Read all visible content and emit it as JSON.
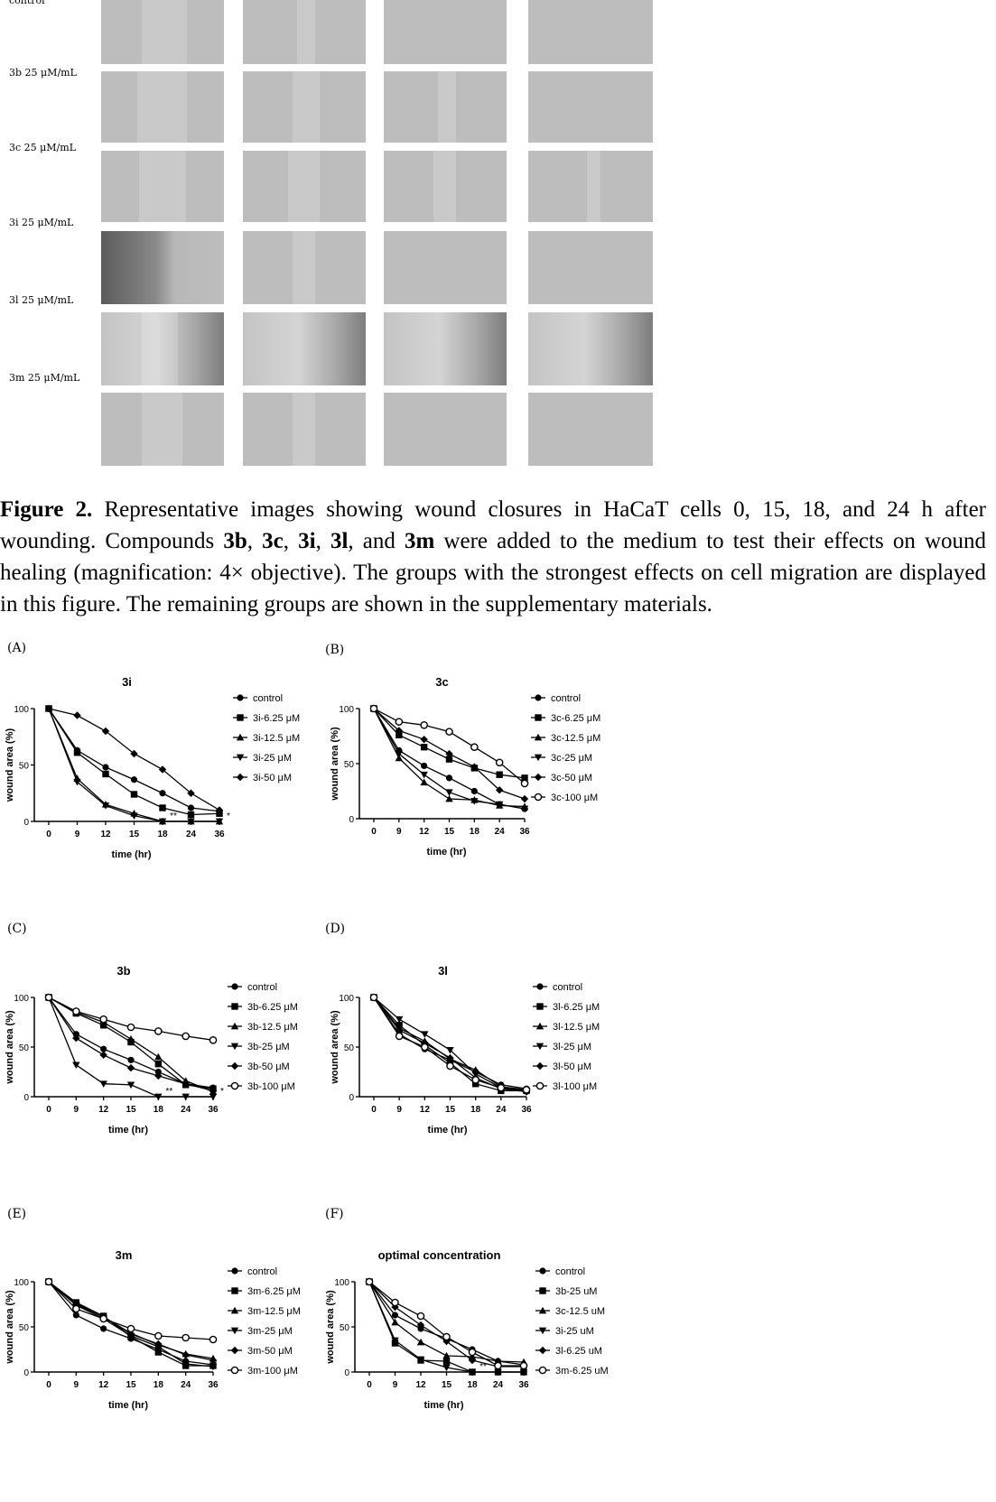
{
  "images": {
    "row_labels": [
      "control",
      "3b 25 μM/mL",
      "3c 25 μM/mL",
      "3i 25 μM/mL",
      "3l 25 μM/mL",
      "3m 25 μM/mL"
    ]
  },
  "caption": {
    "label": "Figure 2.",
    "text_1": " Representative images showing wound closures in HaCaT cells 0, 15, 18, and 24 h after wounding. Compounds ",
    "c1": "3b",
    "sep1": ", ",
    "c2": "3c",
    "sep2": ", ",
    "c3": "3i",
    "sep3": ", ",
    "c4": "3l",
    "sep4": ", and ",
    "c5": "3m",
    "text_2": " were added to the medium to test their effects on wound healing (magnification: 4× objective). The groups with the strongest effects on cell migration are displayed in this figure. The remaining groups are shown in the supplementary materials."
  },
  "colors": {
    "line": "#000000",
    "axis": "#000000"
  },
  "chart_data": [
    {
      "panel": "(A)",
      "type": "line",
      "title": "3i",
      "xlabel": "time (hr)",
      "ylabel": "wound area (%)",
      "categories": [
        "0",
        "9",
        "12",
        "15",
        "18",
        "24",
        "36"
      ],
      "ylim": [
        0,
        100
      ],
      "yticks": [
        "0",
        "50",
        "100"
      ],
      "legend_position": "right",
      "annotations": [
        {
          "text": "**",
          "category": "18"
        },
        {
          "text": "*",
          "category": "36"
        }
      ],
      "series": [
        {
          "name": "control",
          "marker": "circle",
          "values": [
            100,
            63,
            48,
            37,
            25,
            12,
            9
          ]
        },
        {
          "name": "3i-6.25 μM",
          "marker": "square",
          "values": [
            100,
            61,
            42,
            24,
            12,
            6,
            7
          ]
        },
        {
          "name": "3i-12.5 μM",
          "marker": "triangle",
          "values": [
            100,
            38,
            15,
            7,
            0,
            0,
            0
          ]
        },
        {
          "name": "3i-25 μM",
          "marker": "triangle-down",
          "values": [
            100,
            35,
            14,
            5,
            0,
            0,
            0
          ]
        },
        {
          "name": "3i-50 μM",
          "marker": "diamond",
          "values": [
            100,
            94,
            80,
            60,
            46,
            25,
            10
          ]
        }
      ]
    },
    {
      "panel": "(B)",
      "type": "line",
      "title": "3c",
      "xlabel": "time (hr)",
      "ylabel": "wound area (%)",
      "categories": [
        "0",
        "9",
        "12",
        "15",
        "18",
        "24",
        "36"
      ],
      "ylim": [
        0,
        100
      ],
      "yticks": [
        "0",
        "50",
        "100"
      ],
      "legend_position": "right",
      "annotations": [],
      "series": [
        {
          "name": "control",
          "marker": "circle",
          "values": [
            100,
            62,
            48,
            37,
            25,
            13,
            9
          ]
        },
        {
          "name": "3c-6.25 μM",
          "marker": "square",
          "values": [
            100,
            76,
            65,
            54,
            46,
            40,
            37
          ]
        },
        {
          "name": "3c-12.5 μM",
          "marker": "triangle",
          "values": [
            100,
            55,
            33,
            18,
            17,
            12,
            11
          ]
        },
        {
          "name": "3c-25 μM",
          "marker": "triangle-down",
          "values": [
            100,
            59,
            40,
            24,
            16,
            13,
            9
          ]
        },
        {
          "name": "3c-50 μM",
          "marker": "diamond",
          "values": [
            100,
            80,
            72,
            59,
            47,
            26,
            18
          ]
        },
        {
          "name": "3c-100 μM",
          "marker": "circle-open",
          "values": [
            100,
            88,
            85,
            79,
            65,
            51,
            32
          ]
        }
      ]
    },
    {
      "panel": "(C)",
      "type": "line",
      "title": "3b",
      "xlabel": "time (hr)",
      "ylabel": "wound area (%)",
      "categories": [
        "0",
        "9",
        "12",
        "15",
        "18",
        "24",
        "36"
      ],
      "ylim": [
        0,
        100
      ],
      "yticks": [
        "0",
        "50",
        "100"
      ],
      "legend_position": "right",
      "annotations": [
        {
          "text": "**",
          "category": "18"
        },
        {
          "text": "*",
          "category": "36"
        }
      ],
      "series": [
        {
          "name": "control",
          "marker": "circle",
          "values": [
            100,
            63,
            48,
            37,
            25,
            13,
            9
          ]
        },
        {
          "name": "3b-6.25 μM",
          "marker": "square",
          "values": [
            100,
            84,
            72,
            55,
            33,
            12,
            8
          ]
        },
        {
          "name": "3b-12.5 μM",
          "marker": "triangle",
          "values": [
            100,
            85,
            75,
            58,
            40,
            16,
            5
          ]
        },
        {
          "name": "3b-25 μM",
          "marker": "triangle-down",
          "values": [
            100,
            32,
            13,
            12,
            0,
            0,
            0
          ]
        },
        {
          "name": "3b-50 μM",
          "marker": "diamond",
          "values": [
            100,
            59,
            42,
            29,
            21,
            13,
            6
          ]
        },
        {
          "name": "3b-100 μM",
          "marker": "circle-open",
          "values": [
            100,
            86,
            78,
            70,
            66,
            61,
            57
          ]
        }
      ]
    },
    {
      "panel": "(D)",
      "type": "line",
      "title": "3l",
      "xlabel": "time (hr)",
      "ylabel": "wound area (%)",
      "categories": [
        "0",
        "9",
        "12",
        "15",
        "18",
        "24",
        "36"
      ],
      "ylim": [
        0,
        100
      ],
      "yticks": [
        "0",
        "50",
        "100"
      ],
      "legend_position": "right",
      "annotations": [],
      "series": [
        {
          "name": "control",
          "marker": "circle",
          "values": [
            100,
            63,
            48,
            37,
            25,
            12,
            8
          ]
        },
        {
          "name": "3l-6.25 μM",
          "marker": "square",
          "values": [
            100,
            72,
            52,
            34,
            13,
            6,
            6
          ]
        },
        {
          "name": "3l-12.5 μM",
          "marker": "triangle",
          "values": [
            100,
            69,
            56,
            38,
            27,
            10,
            7
          ]
        },
        {
          "name": "3l-25 μM",
          "marker": "triangle-down",
          "values": [
            100,
            78,
            63,
            47,
            23,
            9,
            6
          ]
        },
        {
          "name": "3l-50 μM",
          "marker": "diamond",
          "values": [
            100,
            67,
            54,
            39,
            19,
            8,
            5
          ]
        },
        {
          "name": "3l-100 μM",
          "marker": "circle-open",
          "values": [
            100,
            61,
            50,
            31,
            17,
            9,
            7
          ]
        }
      ]
    },
    {
      "panel": "(E)",
      "type": "line",
      "title": "3m",
      "xlabel": "time (hr)",
      "ylabel": "wound area (%)",
      "categories": [
        "0",
        "9",
        "12",
        "15",
        "18",
        "24",
        "36"
      ],
      "ylim": [
        0,
        100
      ],
      "yticks": [
        "0",
        "50",
        "100"
      ],
      "legend_position": "right",
      "annotations": [],
      "series": [
        {
          "name": "control",
          "marker": "circle",
          "values": [
            100,
            63,
            48,
            37,
            25,
            12,
            8
          ]
        },
        {
          "name": "3m-6.25 μM",
          "marker": "square",
          "values": [
            100,
            77,
            62,
            39,
            22,
            7,
            7
          ]
        },
        {
          "name": "3m-12.5 μM",
          "marker": "triangle",
          "values": [
            100,
            75,
            61,
            43,
            30,
            20,
            15
          ]
        },
        {
          "name": "3m-25 μM",
          "marker": "triangle-down",
          "values": [
            100,
            74,
            59,
            40,
            28,
            9,
            6
          ]
        },
        {
          "name": "3m-50 μM",
          "marker": "diamond",
          "values": [
            100,
            76,
            61,
            42,
            31,
            19,
            13
          ]
        },
        {
          "name": "3m-100 μM",
          "marker": "circle-open",
          "values": [
            100,
            70,
            59,
            48,
            40,
            38,
            36
          ]
        }
      ]
    },
    {
      "panel": "(F)",
      "type": "line",
      "title": "optimal concentration",
      "xlabel": "time (hr)",
      "ylabel": "wound area (%)",
      "categories": [
        "0",
        "9",
        "12",
        "15",
        "18",
        "24",
        "36"
      ],
      "ylim": [
        0,
        100
      ],
      "yticks": [
        "0",
        "50",
        "100"
      ],
      "legend_position": "right",
      "annotations": [
        {
          "text": "**",
          "category": "18"
        }
      ],
      "series": [
        {
          "name": "control",
          "marker": "circle",
          "values": [
            100,
            63,
            48,
            37,
            25,
            12,
            8
          ]
        },
        {
          "name": "3b-25 uM",
          "marker": "square",
          "values": [
            100,
            32,
            13,
            12,
            0,
            0,
            0
          ]
        },
        {
          "name": "3c-12.5 uM",
          "marker": "triangle",
          "values": [
            100,
            55,
            33,
            18,
            17,
            12,
            11
          ]
        },
        {
          "name": "3i-25 uM",
          "marker": "triangle-down",
          "values": [
            100,
            35,
            14,
            5,
            0,
            0,
            0
          ]
        },
        {
          "name": "3l-6.25 uM",
          "marker": "diamond",
          "values": [
            100,
            72,
            52,
            34,
            13,
            6,
            6
          ]
        },
        {
          "name": "3m-6.25 uM",
          "marker": "circle-open",
          "values": [
            100,
            77,
            62,
            39,
            22,
            7,
            7
          ]
        }
      ]
    }
  ]
}
